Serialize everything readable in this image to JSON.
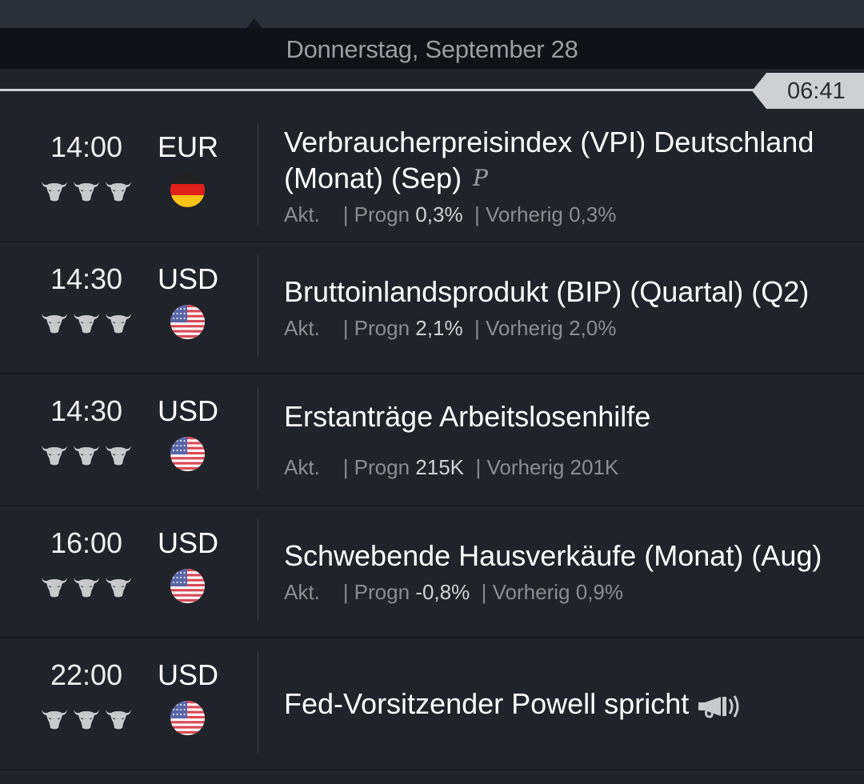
{
  "header": {
    "date": "Donnerstag, September 28",
    "current_time": "06:41"
  },
  "labels": {
    "actual": "Akt.",
    "forecast": "| Progn",
    "previous": "| Vorherig"
  },
  "events": [
    {
      "time": "14:00",
      "currency": "EUR",
      "flag": "germany",
      "importance": 3,
      "title": "Verbraucherpreisindex (VPI) Deutschland (Monat) (Sep)",
      "preliminary_mark": "P",
      "actual": "",
      "forecast": "0,3%",
      "previous": "0,3%"
    },
    {
      "time": "14:30",
      "currency": "USD",
      "flag": "usa",
      "importance": 3,
      "title": "Bruttoinlandsprodukt (BIP) (Quartal) (Q2)",
      "actual": "",
      "forecast": "2,1%",
      "previous": "2,0%"
    },
    {
      "time": "14:30",
      "currency": "USD",
      "flag": "usa",
      "importance": 3,
      "title": "Erstanträge Arbeitslosenhilfe",
      "actual": "",
      "forecast": "215K",
      "previous": "201K"
    },
    {
      "time": "16:00",
      "currency": "USD",
      "flag": "usa",
      "importance": 3,
      "title": "Schwebende Hausverkäufe (Monat) (Aug)",
      "actual": "",
      "forecast": "-0,8%",
      "previous": "0,9%"
    },
    {
      "time": "22:00",
      "currency": "USD",
      "flag": "usa",
      "importance": 3,
      "title": "Fed-Vorsitzender Powell spricht",
      "icon": "megaphone-icon"
    }
  ]
}
